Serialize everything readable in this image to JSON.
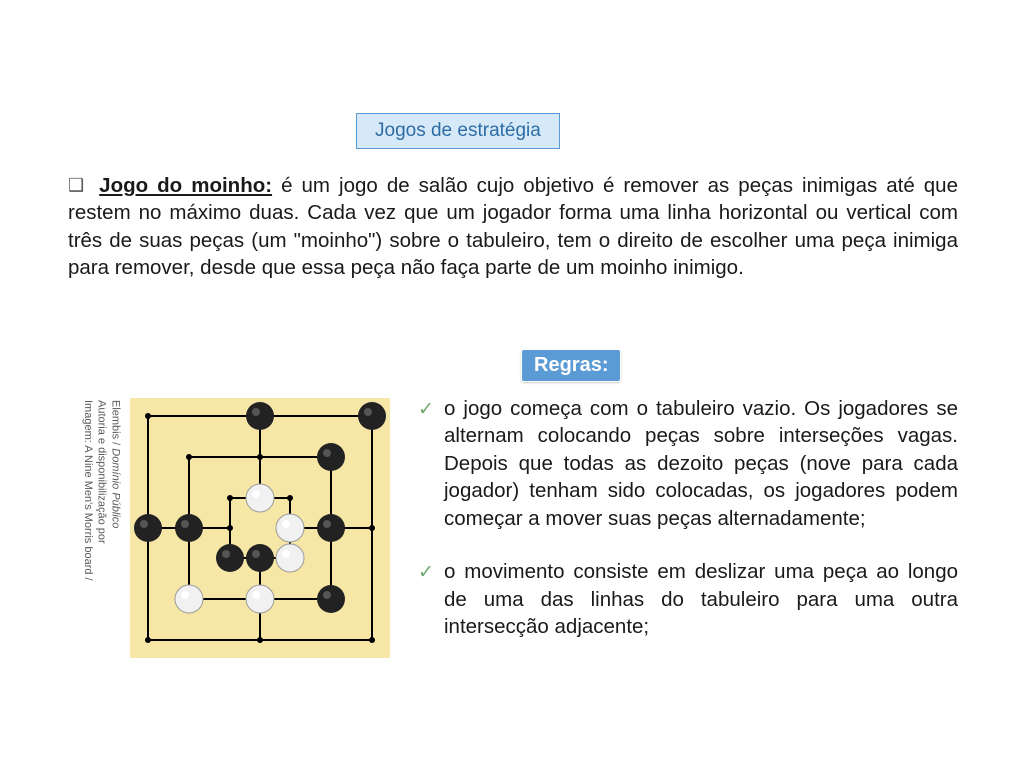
{
  "colors": {
    "title_bg": "#d6e9f8",
    "title_border": "#5b9bd5",
    "title_text": "#2e6ca4",
    "intro_bullet": "#595959",
    "body_text": "#1a1a1a",
    "regras_bg": "#5b9bd5",
    "regras_text": "#ffffff",
    "check_color": "#6fa86f",
    "board_bg": "#f6e7a7",
    "board_line": "#000000",
    "piece_black": "#222222",
    "piece_white_fill": "#f1f1f1",
    "piece_white_stroke": "#9c9c9c"
  },
  "title_badge": "Jogos de estratégia",
  "intro": {
    "bullet_glyph": "❑",
    "title": "Jogo do moinho:",
    "body": " é um jogo de salão cujo objetivo é remover as peças inimigas até que restem no máximo duas. Cada vez que um jogador forma uma linha horizontal ou vertical com três de suas peças (um \"moinho\") sobre o tabuleiro, tem o direito de escolher uma peça inimiga para remover, desde que essa peça não faça parte de um moinho inimigo."
  },
  "regras_label": "Regras:",
  "rules": [
    {
      "check": "✓",
      "text": "o jogo começa com o tabuleiro vazio. Os jogadores se alternam colocando peças sobre interseções vagas. Depois que todas as dezoito peças (nove para cada jogador) tenham sido colocadas, os jogadores podem começar a mover suas peças alternadamente;"
    },
    {
      "check": "✓",
      "text": "o movimento consiste em deslizar uma peça ao longo de uma das linhas do tabuleiro para uma outra intersecção adjacente;"
    }
  ],
  "credit": {
    "line1": "Imagem: A Nine Men's Morris board /",
    "line2": "Autoria e disponibilização por",
    "line3_plain": "Elembis / ",
    "line3_italic": "Domínio Público"
  },
  "board": {
    "size": 260,
    "type": "diagram",
    "padding": 18,
    "ring_gaps": [
      0,
      41,
      82
    ],
    "piece_radius": 14,
    "dot_radius": 3,
    "pieces": [
      {
        "pos": "outer-tm",
        "color": "black"
      },
      {
        "pos": "outer-tr",
        "color": "black"
      },
      {
        "pos": "middle-tr",
        "color": "black"
      },
      {
        "pos": "outer-ml",
        "color": "black"
      },
      {
        "pos": "middle-ml",
        "color": "black"
      },
      {
        "pos": "inner-tm",
        "color": "white"
      },
      {
        "pos": "inner-mr",
        "color": "white"
      },
      {
        "pos": "inner-br",
        "color": "white"
      },
      {
        "pos": "inner-bl",
        "color": "black"
      },
      {
        "pos": "inner-bm",
        "color": "black"
      },
      {
        "pos": "middle-bl",
        "color": "white"
      },
      {
        "pos": "middle-bm",
        "color": "white"
      },
      {
        "pos": "middle-br",
        "color": "black"
      },
      {
        "pos": "middle-mr",
        "color": "black"
      }
    ]
  }
}
